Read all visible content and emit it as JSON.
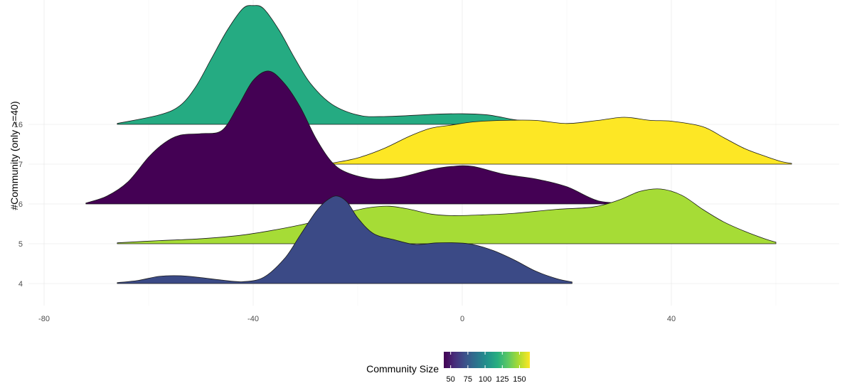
{
  "chart_data": {
    "type": "ridgeline",
    "xlabel": "",
    "ylabel": "#Community (only >=40)",
    "xlim": [
      -80,
      72
    ],
    "x_ticks": [
      -80,
      -40,
      0,
      40
    ],
    "x_tick_labels": [
      "-80",
      "-40",
      "0",
      "40"
    ],
    "grid": true,
    "categories": [
      "4",
      "5",
      "6",
      "7",
      "16"
    ],
    "series": [
      {
        "community": "4",
        "community_size": 65,
        "color": "#3b4a86",
        "density": [
          [
            -66,
            0.6
          ],
          [
            -62,
            2
          ],
          [
            -58,
            4.6
          ],
          [
            -54,
            5
          ],
          [
            -50,
            3.8
          ],
          [
            -46,
            2.2
          ],
          [
            -42,
            1.2
          ],
          [
            -38,
            4
          ],
          [
            -34,
            16
          ],
          [
            -31,
            31
          ],
          [
            -28,
            46
          ],
          [
            -26,
            53
          ],
          [
            -24,
            56
          ],
          [
            -22,
            52
          ],
          [
            -20,
            42
          ],
          [
            -17,
            32
          ],
          [
            -13,
            28
          ],
          [
            -9,
            25
          ],
          [
            -5,
            26
          ],
          [
            -1,
            26
          ],
          [
            2,
            25
          ],
          [
            6,
            21
          ],
          [
            10,
            15
          ],
          [
            14,
            8
          ],
          [
            18,
            3.2
          ],
          [
            21,
            1
          ]
        ]
      },
      {
        "community": "5",
        "community_size": 140,
        "color": "#a6dc36",
        "density": [
          [
            -66,
            0.6
          ],
          [
            -58,
            2
          ],
          [
            -50,
            3.2
          ],
          [
            -42,
            5.6
          ],
          [
            -34,
            10
          ],
          [
            -28,
            14.3
          ],
          [
            -22,
            20
          ],
          [
            -18,
            23
          ],
          [
            -14,
            24
          ],
          [
            -10,
            22
          ],
          [
            -6,
            19
          ],
          [
            -2,
            18
          ],
          [
            4,
            18.5
          ],
          [
            10,
            19.5
          ],
          [
            18,
            22
          ],
          [
            25,
            23.5
          ],
          [
            30,
            28
          ],
          [
            34,
            33.5
          ],
          [
            38,
            35
          ],
          [
            42,
            31
          ],
          [
            46,
            22
          ],
          [
            50,
            14
          ],
          [
            54,
            8
          ],
          [
            58,
            3
          ],
          [
            60,
            1
          ]
        ]
      },
      {
        "community": "6",
        "community_size": 45,
        "color": "#440154",
        "density": [
          [
            -72,
            0.6
          ],
          [
            -68,
            5
          ],
          [
            -64,
            14
          ],
          [
            -60,
            30
          ],
          [
            -57,
            39
          ],
          [
            -54,
            44
          ],
          [
            -50,
            45
          ],
          [
            -46,
            47
          ],
          [
            -43,
            62
          ],
          [
            -40,
            79
          ],
          [
            -37,
            85
          ],
          [
            -34,
            77
          ],
          [
            -31,
            62
          ],
          [
            -28,
            42
          ],
          [
            -25,
            27
          ],
          [
            -22,
            20
          ],
          [
            -17,
            16
          ],
          [
            -12,
            17
          ],
          [
            -6,
            22
          ],
          [
            -2,
            24
          ],
          [
            2,
            24
          ],
          [
            8,
            19
          ],
          [
            14,
            16
          ],
          [
            20,
            11
          ],
          [
            26,
            2
          ],
          [
            32,
            0.5
          ]
        ]
      },
      {
        "community": "7",
        "community_size": 160,
        "color": "#fde725",
        "density": [
          [
            -25,
            0.6
          ],
          [
            -20,
            4
          ],
          [
            -15,
            10
          ],
          [
            -10,
            18
          ],
          [
            -6,
            23
          ],
          [
            -2,
            25
          ],
          [
            2,
            27
          ],
          [
            8,
            28
          ],
          [
            14,
            28
          ],
          [
            20,
            26
          ],
          [
            26,
            28
          ],
          [
            31,
            30
          ],
          [
            36,
            28
          ],
          [
            40,
            27.5
          ],
          [
            46,
            24
          ],
          [
            50,
            17
          ],
          [
            54,
            10
          ],
          [
            58,
            5
          ],
          [
            61,
            1.7
          ],
          [
            63,
            0.5
          ]
        ]
      },
      {
        "community": "16",
        "community_size": 115,
        "color": "#25ab82",
        "density": [
          [
            -66,
            0.6
          ],
          [
            -58,
            6
          ],
          [
            -54,
            12
          ],
          [
            -51,
            24
          ],
          [
            -48,
            42
          ],
          [
            -45,
            60
          ],
          [
            -42,
            74
          ],
          [
            -40,
            76
          ],
          [
            -38,
            74
          ],
          [
            -35,
            60
          ],
          [
            -32,
            42
          ],
          [
            -29,
            26
          ],
          [
            -25,
            13
          ],
          [
            -20,
            6
          ],
          [
            -15,
            5
          ],
          [
            -5,
            6.5
          ],
          [
            0,
            6.8
          ],
          [
            5,
            6
          ],
          [
            10,
            3
          ],
          [
            14,
            1.7
          ],
          [
            16,
            0.5
          ]
        ]
      }
    ],
    "legend": {
      "title": "Community Size",
      "type": "colorbar",
      "position": "bottom",
      "breaks": [
        "50",
        "75",
        "100",
        "125",
        "150"
      ],
      "break_values": [
        50,
        75,
        100,
        125,
        150
      ],
      "range": [
        40,
        165
      ],
      "gradient_colors": [
        "#440154",
        "#472d7b",
        "#3b528b",
        "#2c728e",
        "#21918c",
        "#28ae80",
        "#5ec962",
        "#addc30",
        "#fde725"
      ]
    }
  }
}
